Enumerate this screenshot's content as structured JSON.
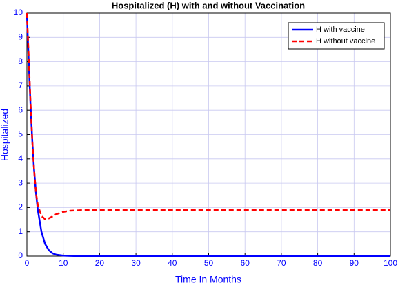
{
  "chart_data": {
    "type": "line",
    "title": "Hospitalized (H) with and without Vaccination",
    "x_label": "Time In Months",
    "y_label": "Hospitalized",
    "x": [
      0,
      0.5,
      1,
      1.5,
      2,
      2.5,
      3,
      4,
      5,
      6,
      7,
      8,
      10,
      12,
      15,
      20,
      30,
      40,
      50,
      60,
      70,
      80,
      90,
      100
    ],
    "series": [
      {
        "name": "H with vaccine",
        "color": "#0000ff",
        "dash": "solid",
        "values": [
          10,
          8.0,
          6.2,
          4.7,
          3.5,
          2.6,
          1.9,
          1.0,
          0.5,
          0.25,
          0.12,
          0.06,
          0.02,
          0.01,
          0,
          0,
          0,
          0,
          0,
          0,
          0,
          0,
          0,
          0
        ]
      },
      {
        "name": "H without vaccine",
        "color": "#ff0000",
        "dash": "dashed",
        "values": [
          10,
          8.2,
          6.3,
          4.7,
          3.5,
          2.6,
          2.1,
          1.65,
          1.52,
          1.55,
          1.63,
          1.72,
          1.82,
          1.87,
          1.89,
          1.9,
          1.9,
          1.9,
          1.9,
          1.9,
          1.9,
          1.9,
          1.9,
          1.9
        ]
      }
    ],
    "xlim": [
      0,
      100
    ],
    "xticks": [
      0,
      10,
      20,
      30,
      40,
      50,
      60,
      70,
      80,
      90,
      100
    ],
    "ylim": [
      0,
      10
    ],
    "yticks": [
      0,
      1,
      2,
      3,
      4,
      5,
      6,
      7,
      8,
      9,
      10
    ],
    "grid": true,
    "legend": "northeast"
  }
}
